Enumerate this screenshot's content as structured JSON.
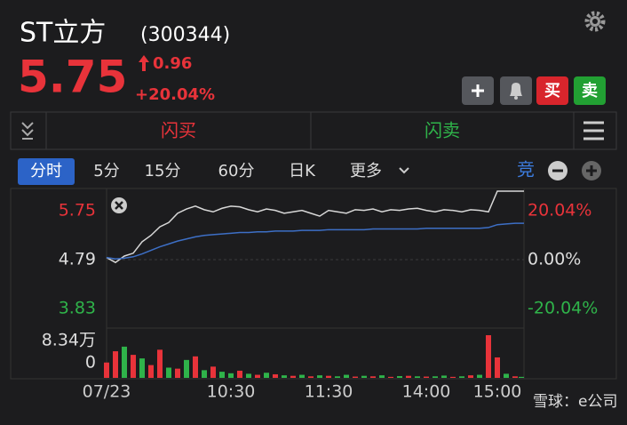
{
  "header": {
    "name": "ST立方",
    "code": "(300344)",
    "price": "5.75",
    "change": "0.96",
    "change_pct": "+20.04%"
  },
  "buttons": {
    "buy": "买",
    "sell": "卖",
    "flash_buy": "闪买",
    "flash_sell": "闪卖"
  },
  "tabs": [
    "分时",
    "5分",
    "15分",
    "60分",
    "日K",
    "更多"
  ],
  "auction": "竞",
  "watermark": "雪球：e公司",
  "chart_data": {
    "type": "line",
    "x_labels": [
      "07/23",
      "10:30",
      "11:30",
      "14:00",
      "15:00"
    ],
    "ylim": [
      3.83,
      5.75
    ],
    "yticks": [
      5.75,
      4.79,
      3.83
    ],
    "y2lim": [
      -20.04,
      20.04
    ],
    "y2ticks": [
      {
        "value": 20.04,
        "label": "20.04%"
      },
      {
        "value": 0,
        "label": "0.00%"
      },
      {
        "value": -20.04,
        "label": "-20.04%"
      }
    ],
    "series": [
      {
        "color": "#d8d8d8",
        "values": [
          4.82,
          4.75,
          4.84,
          4.88,
          5.04,
          5.13,
          5.25,
          5.31,
          5.44,
          5.5,
          5.54,
          5.49,
          5.46,
          5.51,
          5.54,
          5.53,
          5.49,
          5.46,
          5.5,
          5.48,
          5.44,
          5.46,
          5.48,
          5.44,
          5.4,
          5.48,
          5.46,
          5.44,
          5.49,
          5.48,
          5.5,
          5.46,
          5.49,
          5.48,
          5.5,
          5.51,
          5.48,
          5.46,
          5.49,
          5.48,
          5.46,
          5.49,
          5.48,
          5.46,
          5.75,
          5.75,
          5.75,
          5.75
        ]
      },
      {
        "color": "#3d6fc6",
        "values": [
          4.82,
          4.8,
          4.81,
          4.83,
          4.87,
          4.92,
          4.97,
          5.01,
          5.05,
          5.08,
          5.11,
          5.13,
          5.14,
          5.15,
          5.16,
          5.17,
          5.17,
          5.18,
          5.18,
          5.19,
          5.19,
          5.19,
          5.2,
          5.2,
          5.2,
          5.21,
          5.21,
          5.21,
          5.21,
          5.21,
          5.22,
          5.22,
          5.22,
          5.22,
          5.22,
          5.22,
          5.23,
          5.23,
          5.23,
          5.23,
          5.23,
          5.23,
          5.23,
          5.24,
          5.28,
          5.29,
          5.3,
          5.3
        ]
      }
    ],
    "volume": {
      "values": [
        30000,
        52000,
        61000,
        45000,
        38000,
        25000,
        55000,
        20000,
        18000,
        35000,
        42000,
        15000,
        22000,
        12000,
        9000,
        14000,
        8000,
        6000,
        10000,
        7000,
        5000,
        4000,
        6000,
        3000,
        5000,
        4000,
        3000,
        6000,
        2500,
        4000,
        3000,
        5000,
        2000,
        3500,
        4000,
        3000,
        2500,
        3000,
        4500,
        2000,
        3000,
        5000,
        6000,
        83400,
        40000,
        8000,
        3000,
        2000
      ],
      "up": [
        true,
        true,
        false,
        true,
        false,
        true,
        true,
        false,
        true,
        false,
        true,
        false,
        true,
        false,
        false,
        true,
        false,
        true,
        false,
        true,
        false,
        true,
        false,
        true,
        false,
        true,
        false,
        false,
        true,
        false,
        true,
        false,
        true,
        false,
        true,
        false,
        true,
        false,
        false,
        true,
        false,
        true,
        false,
        true,
        true,
        false,
        true,
        false
      ],
      "up_color": "#e8333a",
      "down_color": "#2fb34a",
      "vlim": [
        0,
        83400
      ],
      "vticks": [
        {
          "value": 83400,
          "label": "8.34万"
        },
        0
      ]
    }
  }
}
